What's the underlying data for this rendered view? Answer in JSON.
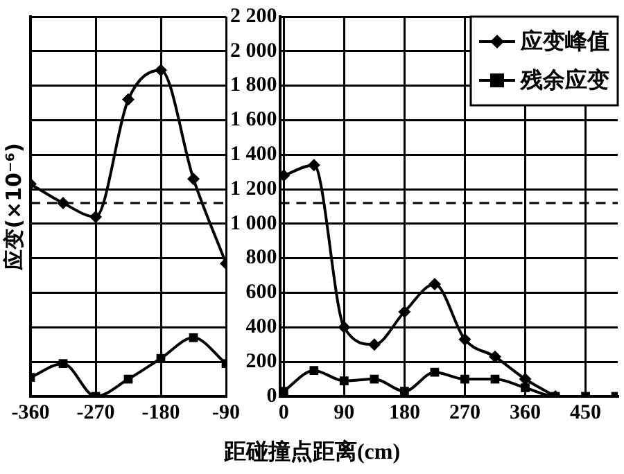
{
  "chart_data": [
    {
      "type": "line",
      "ylabel": "应变(×10⁻⁶)",
      "x": [
        -360,
        -315,
        -270,
        -225,
        -180,
        -135,
        -90
      ],
      "xlim": [
        -360,
        -90
      ],
      "xticks": [
        -360,
        -270,
        -180,
        -90
      ],
      "ylim": [
        0,
        2200
      ],
      "yticks": [
        0,
        200,
        400,
        600,
        800,
        1000,
        1200,
        1400,
        1600,
        1800,
        2000,
        2200
      ],
      "tick_labels": "x",
      "grid": true,
      "ref_lines": [
        {
          "axis": "y",
          "value": 1120,
          "line_style": "dashed",
          "color": "#000000"
        }
      ],
      "series": [
        {
          "color": "#000000",
          "marker": "diamond",
          "values": [
            1230,
            1120,
            1040,
            1720,
            1890,
            1260,
            770
          ]
        },
        {
          "color": "#000000",
          "marker": "square",
          "values": [
            110,
            190,
            0,
            100,
            220,
            340,
            190
          ]
        }
      ]
    },
    {
      "type": "line",
      "xlabel": "距碰撞点距离(cm)",
      "x": [
        0,
        45,
        90,
        135,
        180,
        225,
        270,
        315,
        360,
        405,
        450,
        495
      ],
      "xlim": [
        -6,
        498
      ],
      "xticks": [
        0,
        90,
        180,
        270,
        360,
        450
      ],
      "ylim": [
        0,
        2200
      ],
      "yticks": [
        0,
        200,
        400,
        600,
        800,
        {
          "value": 1000,
          "label": "1 000"
        },
        {
          "value": 1200,
          "label": "1 200"
        },
        {
          "value": 1400,
          "label": "1 400"
        },
        {
          "value": 1600,
          "label": "1 600"
        },
        {
          "value": 1800,
          "label": "1 800"
        },
        {
          "value": 2000,
          "label": "2 000"
        },
        {
          "value": 2200,
          "label": "2 200"
        }
      ],
      "grid": true,
      "legend": "top right",
      "ref_lines": [
        {
          "axis": "y",
          "value": 1120,
          "line_style": "dashed",
          "color": "#000000"
        }
      ],
      "series": [
        {
          "name": "应变峰值",
          "color": "#000000",
          "marker": "diamond",
          "values": [
            1280,
            1340,
            400,
            300,
            490,
            650,
            330,
            230,
            100,
            0,
            null,
            null
          ]
        },
        {
          "name": "残余应变",
          "color": "#000000",
          "marker": "square",
          "values": [
            30,
            150,
            90,
            100,
            30,
            140,
            100,
            100,
            50,
            0,
            0,
            0
          ]
        }
      ]
    }
  ]
}
